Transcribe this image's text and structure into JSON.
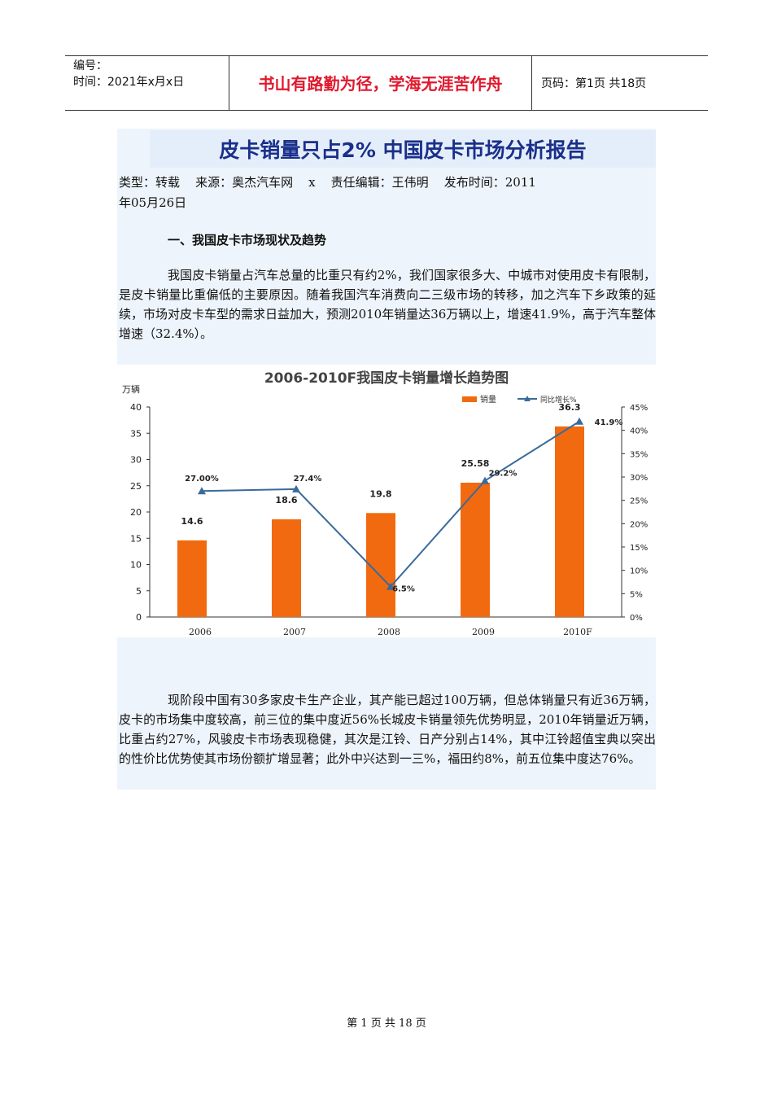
{
  "header": {
    "number_label": "编号：",
    "time_label": "时间：2021年x月x日",
    "motto": "书山有路勤为径，学海无涯苦作舟",
    "page_label": "页码：第1页  共18页"
  },
  "article": {
    "title": "皮卡销量只占2% 中国皮卡市场分析报告",
    "meta_line1": "类型：转载    来源：奥杰汽车网    x    责任编辑：王伟明    发布时间：2011",
    "meta_line2": "年05月26日",
    "section1": "一、我国皮卡市场现状及趋势",
    "para1": "我国皮卡销量占汽车总量的比重只有约2%，我们国家很多大、中城市对使用皮卡有限制，是皮卡销量比重偏低的主要原因。随着我国汽车消费向二三级市场的转移，加之汽车下乡政策的延续，市场对皮卡车型的需求日益加大，预测2010年销量达36万辆以上，增速41.9%，高于汽车整体增速（32.4%）。",
    "para2": "现阶段中国有30多家皮卡生产企业，其产能已超过100万辆，但总体销量只有近36万辆，皮卡的市场集中度较高，前三位的集中度近56%长城皮卡销量领先优势明显，2010年销量近万辆，比重占约27%，风骏皮卡市场表现稳健，其次是江铃、日产分别占14%，其中江铃超值宝典以突出的性价比优势使其市场份额扩增显著；此外中兴达到一三%，福田约8%，前五位集中度达76%。"
  },
  "chart_data": {
    "type": "bar",
    "title": "2006-2010F我国皮卡销量增长趋势图",
    "ylabel": "万辆",
    "categories": [
      "2006",
      "2007",
      "2008",
      "2009",
      "2010F"
    ],
    "series": [
      {
        "name": "销量",
        "type": "bar",
        "axis": "left",
        "color": "#f26a10",
        "values": [
          14.6,
          18.6,
          19.8,
          25.58,
          36.3
        ],
        "labels": [
          "14.6",
          "18.6",
          "19.8",
          "25.58",
          "36.3"
        ]
      },
      {
        "name": "同比增长%",
        "type": "line",
        "axis": "right",
        "color": "#3a6a9a",
        "values": [
          27.0,
          27.4,
          6.5,
          29.2,
          41.9
        ],
        "labels": [
          "27.00%",
          "27.4%",
          "6.5%",
          "29.2%",
          "41.9%"
        ]
      }
    ],
    "left_axis": {
      "min": 0,
      "max": 40,
      "ticks": [
        "0",
        "5",
        "10",
        "15",
        "20",
        "25",
        "30",
        "35",
        "40"
      ]
    },
    "right_axis": {
      "min": 0,
      "max": 45,
      "ticks": [
        "0%",
        "5%",
        "10%",
        "15%",
        "20%",
        "25%",
        "30%",
        "35%",
        "40%",
        "45%"
      ]
    },
    "legend": "top-right",
    "grid": false
  },
  "footer": {
    "page_text": "第 1 页 共 18 页"
  }
}
